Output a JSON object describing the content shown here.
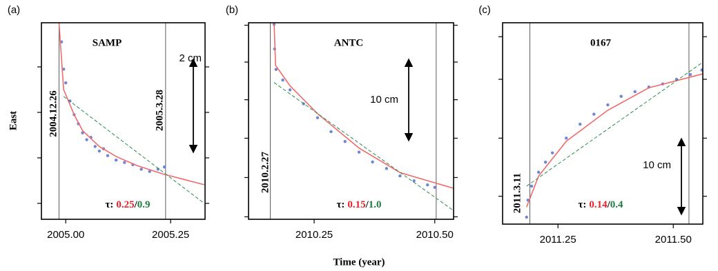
{
  "figure": {
    "ylabel": "East",
    "xlabel": "Time (year)"
  },
  "chart_data": [
    {
      "type": "scatter",
      "panel": "(a)",
      "title": "SAMP",
      "xlim": [
        2004.942,
        2005.332
      ],
      "ylim": [
        0,
        4.32
      ],
      "xticks": [
        {
          "value": 2005,
          "label": "2005.00"
        },
        {
          "value": 2005.25,
          "label": "2005.25"
        }
      ],
      "yticks": [
        0.35,
        1.35,
        2.35,
        3.35
      ],
      "events": [
        {
          "x": 2004.984,
          "label": "2004.12.26"
        },
        {
          "x": 2005.238,
          "label": "2005.3.28"
        }
      ],
      "scale_label": "2 cm",
      "tau": {
        "symbol": "τ:",
        "fit": "0.25",
        "sep": "/",
        "linear": "0.9"
      },
      "series": [
        {
          "style": "points",
          "color": "#6f86d6",
          "x": [
            2004.99,
            2004.995,
            2005.0,
            2005.01,
            2005.02,
            2005.03,
            2005.04,
            2005.05,
            2005.06,
            2005.07,
            2005.08,
            2005.09,
            2005.1,
            2005.12,
            2005.14,
            2005.16,
            2005.18,
            2005.2,
            2005.22,
            2005.235
          ],
          "values": [
            3.9,
            3.3,
            3.0,
            2.6,
            2.3,
            2.1,
            1.9,
            1.75,
            1.8,
            1.6,
            1.5,
            1.55,
            1.4,
            1.3,
            1.25,
            1.2,
            1.1,
            1.05,
            1.1,
            1.15
          ]
        },
        {
          "style": "line",
          "color": "#f06a6a",
          "x": [
            2004.984,
            2004.995,
            2005.02,
            2005.04,
            2005.08,
            2005.12,
            2005.17,
            2005.23,
            2005.28,
            2005.33
          ],
          "values": [
            4.3,
            2.85,
            2.3,
            1.95,
            1.6,
            1.38,
            1.18,
            1.0,
            0.88,
            0.76
          ]
        },
        {
          "style": "dashed",
          "color": "#2a8a4a",
          "x": [
            2004.995,
            2005.33
          ],
          "values": [
            2.7,
            0.35
          ]
        }
      ]
    },
    {
      "type": "scatter",
      "panel": "(b)",
      "title": "ANTC",
      "xlim": [
        2010.114,
        2010.539
      ],
      "ylim": [
        0,
        24
      ],
      "xticks": [
        2010.25,
        {
          "value": 2010.5,
          "label": "2010.50"
        }
      ],
      "yticks": [
        23.7,
        19.2,
        14.6,
        9.9,
        5.1,
        0.3
      ],
      "events": [
        {
          "x": 2010.159,
          "label": "2010.2.27"
        },
        {
          "x": 2010.503
        }
      ],
      "scale_label": "10 cm",
      "tau": {
        "symbol": "τ:",
        "fit": "0.15",
        "sep": "/",
        "linear": "1.0"
      },
      "series": [
        {
          "style": "points",
          "color": "#6f86d6",
          "x": [
            2010.167,
            2010.168,
            2010.171,
            2010.185,
            2010.2,
            2010.228,
            2010.257,
            2010.285,
            2010.314,
            2010.343,
            2010.371,
            2010.4,
            2010.428,
            2010.457,
            2010.485,
            2010.5
          ],
          "values": [
            23.8,
            20.8,
            18.3,
            17.0,
            15.8,
            14.1,
            12.4,
            10.7,
            9.5,
            8.2,
            7.0,
            6.2,
            5.3,
            4.7,
            4.2,
            3.9
          ]
        },
        {
          "style": "line",
          "color": "#f06a6a",
          "x": [
            2010.167,
            2010.17,
            2010.2,
            2010.257,
            2010.343,
            2010.428,
            2010.538
          ],
          "values": [
            24,
            18.8,
            16.3,
            12.9,
            8.7,
            5.7,
            3.8
          ]
        },
        {
          "style": "dashed",
          "color": "#2a8a4a",
          "x": [
            2010.167,
            2010.538
          ],
          "values": [
            16.7,
            1.1
          ]
        }
      ]
    },
    {
      "type": "scatter",
      "panel": "(c)",
      "title": "0167",
      "xlim": [
        2011.13,
        2011.564
      ],
      "ylim": [
        0,
        26
      ],
      "xticks": [
        2011.25,
        {
          "value": 2011.5,
          "label": "2011.50"
        }
      ],
      "yticks": [
        24.2,
        18.7,
        11.1,
        3.6
      ],
      "events": [
        {
          "x": 2011.189,
          "label": "2011.3.11"
        },
        {
          "x": 2011.534
        }
      ],
      "scale_label": "10 cm",
      "tau": {
        "symbol": "τ:",
        "fit": "0.14",
        "sep": "/",
        "linear": "0.4"
      },
      "series": [
        {
          "style": "points",
          "color": "#6f86d6",
          "x": [
            2011.182,
            2011.185,
            2011.193,
            2011.208,
            2011.223,
            2011.238,
            2011.268,
            2011.298,
            2011.328,
            2011.358,
            2011.387,
            2011.417,
            2011.447,
            2011.477,
            2011.507,
            2011.537,
            2011.562
          ],
          "values": [
            0.9,
            3.1,
            4.9,
            6.7,
            8.0,
            9.2,
            11.1,
            12.9,
            14.2,
            15.4,
            16.5,
            17.1,
            17.7,
            18.1,
            18.7,
            19.3,
            19.9
          ]
        },
        {
          "style": "line",
          "color": "#f06a6a",
          "x": [
            2011.182,
            2011.208,
            2011.268,
            2011.358,
            2011.447,
            2011.564
          ],
          "values": [
            2.2,
            6.2,
            10.7,
            14.7,
            17.6,
            19.4
          ]
        },
        {
          "style": "dashed",
          "color": "#2a8a4a",
          "x": [
            2011.182,
            2011.564
          ],
          "values": [
            4.9,
            20.9
          ]
        }
      ]
    }
  ]
}
